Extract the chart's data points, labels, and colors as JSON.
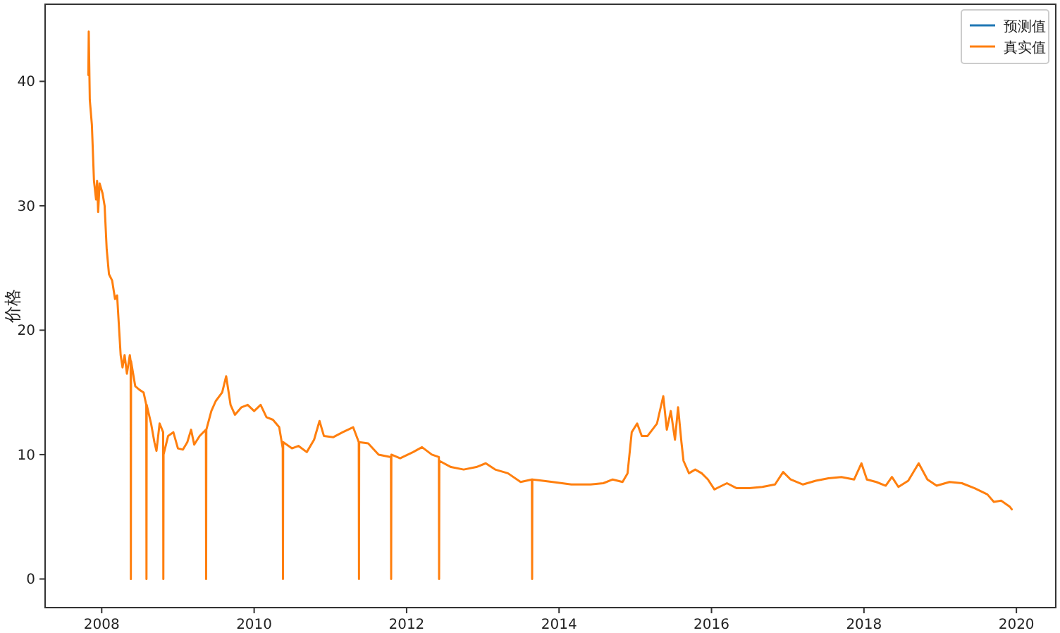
{
  "chart_data": {
    "type": "line",
    "ylabel": "价格",
    "legend": "top right",
    "grid": false,
    "xlim": [
      "2007-04-05",
      "2020-07-08"
    ],
    "xticks": [
      "2008",
      "2010",
      "2012",
      "2014",
      "2016",
      "2018",
      "2020"
    ],
    "ylim": [
      -2.3,
      46.2
    ],
    "yticks": [
      0,
      10,
      20,
      30,
      40
    ],
    "x": [
      "2007-10-29",
      "2007-10-31",
      "2007-11-05",
      "2007-11-15",
      "2007-11-25",
      "2007-12-05",
      "2007-12-10",
      "2007-12-15",
      "2007-12-22",
      "2008-01-05",
      "2008-01-15",
      "2008-01-25",
      "2008-02-05",
      "2008-02-20",
      "2008-03-05",
      "2008-03-15",
      "2008-04-01",
      "2008-04-10",
      "2008-04-20",
      "2008-05-01",
      "2008-05-15",
      "2008-05-19",
      "2008-05-20",
      "2008-05-21",
      "2008-06-10",
      "2008-07-01",
      "2008-07-20",
      "2008-08-02",
      "2008-08-03",
      "2008-08-04",
      "2008-08-25",
      "2008-09-10",
      "2008-09-20",
      "2008-10-05",
      "2008-10-22",
      "2008-10-23",
      "2008-10-24",
      "2008-11-15",
      "2008-12-10",
      "2009-01-01",
      "2009-01-25",
      "2009-02-15",
      "2009-03-05",
      "2009-03-20",
      "2009-04-15",
      "2009-05-15",
      "2009-05-16",
      "2009-05-17",
      "2009-06-10",
      "2009-07-01",
      "2009-08-01",
      "2009-08-20",
      "2009-09-10",
      "2009-10-01",
      "2009-11-01",
      "2009-12-01",
      "2010-01-01",
      "2010-02-01",
      "2010-03-01",
      "2010-04-01",
      "2010-05-01",
      "2010-05-18",
      "2010-05-19",
      "2010-05-20",
      "2010-07-01",
      "2010-08-01",
      "2010-09-10",
      "2010-10-15",
      "2010-11-10",
      "2010-12-01",
      "2011-01-15",
      "2011-03-01",
      "2011-04-20",
      "2011-05-17",
      "2011-05-18",
      "2011-05-19",
      "2011-07-01",
      "2011-08-20",
      "2011-10-18",
      "2011-10-19",
      "2011-10-20",
      "2011-12-01",
      "2012-02-01",
      "2012-03-15",
      "2012-05-01",
      "2012-06-04",
      "2012-06-05",
      "2012-06-06",
      "2012-08-01",
      "2012-10-01",
      "2012-12-01",
      "2013-01-15",
      "2013-03-01",
      "2013-05-01",
      "2013-07-01",
      "2013-08-24",
      "2013-08-25",
      "2013-08-26",
      "2013-10-15",
      "2013-12-01",
      "2014-03-01",
      "2014-06-01",
      "2014-08-01",
      "2014-09-15",
      "2014-11-01",
      "2014-11-25",
      "2014-12-15",
      "2015-01-10",
      "2015-02-01",
      "2015-03-01",
      "2015-04-15",
      "2015-05-15",
      "2015-06-01",
      "2015-06-20",
      "2015-07-10",
      "2015-07-25",
      "2015-08-10",
      "2015-08-20",
      "2015-09-15",
      "2015-10-15",
      "2015-11-15",
      "2015-12-15",
      "2016-01-15",
      "2016-03-15",
      "2016-05-01",
      "2016-07-01",
      "2016-09-01",
      "2016-11-01",
      "2016-12-10",
      "2017-01-15",
      "2017-03-15",
      "2017-05-15",
      "2017-07-15",
      "2017-09-15",
      "2017-11-15",
      "2017-12-20",
      "2018-01-15",
      "2018-03-01",
      "2018-04-15",
      "2018-05-15",
      "2018-06-15",
      "2018-08-01",
      "2018-09-20",
      "2018-11-01",
      "2018-12-15",
      "2019-02-15",
      "2019-04-15",
      "2019-06-15",
      "2019-08-15",
      "2019-09-15",
      "2019-10-20",
      "2019-12-01",
      "2019-12-10"
    ],
    "series": [
      {
        "name": "预测值",
        "color": "#1f77b4",
        "values": [
          null,
          null,
          null,
          null,
          null,
          null,
          null,
          null,
          null,
          null,
          null,
          null,
          null,
          null,
          null,
          null,
          null,
          null,
          null,
          null,
          null,
          null,
          null,
          null,
          null,
          null,
          null,
          null,
          null,
          null,
          null,
          null,
          null,
          null,
          null,
          null,
          null,
          null,
          null,
          null,
          null,
          null,
          null,
          null,
          null,
          null,
          null,
          null,
          null,
          null,
          null,
          null,
          null,
          null,
          null,
          null,
          null,
          null,
          null,
          null,
          null,
          null,
          null,
          null,
          null,
          null,
          null,
          null,
          null,
          null,
          null,
          null,
          null,
          null,
          null,
          null,
          null,
          null,
          null,
          null,
          null,
          null,
          null,
          null,
          null,
          null,
          null,
          null,
          null,
          null,
          null,
          null,
          null,
          null,
          null,
          null,
          null,
          null,
          null,
          null,
          null,
          null,
          null,
          null,
          null,
          null,
          null,
          null,
          null,
          null,
          null,
          null,
          null,
          null,
          null,
          null,
          null,
          null,
          null,
          null,
          null,
          null,
          null,
          null,
          null,
          null,
          null,
          null,
          null,
          null,
          null,
          null,
          null,
          null,
          null,
          null,
          null,
          null,
          null,
          null,
          null,
          null,
          null,
          null,
          null,
          null,
          null,
          null,
          null,
          null,
          null,
          null,
          null
        ]
      },
      {
        "name": "真实值",
        "color": "#ff7f0e",
        "values": [
          40.5,
          44.0,
          38.5,
          36.5,
          32,
          30.5,
          32,
          29.5,
          31.8,
          31,
          30,
          26.5,
          24.5,
          24,
          22.5,
          22.8,
          18,
          17,
          18,
          16.5,
          18,
          17.5,
          0,
          17.5,
          15.5,
          15.2,
          15,
          14,
          0,
          14,
          12.5,
          11,
          10.3,
          12.5,
          11.8,
          0,
          10,
          11.5,
          11.8,
          10.5,
          10.4,
          11,
          12,
          10.8,
          11.5,
          12,
          0,
          12,
          13.5,
          14.3,
          15,
          16.3,
          14,
          13.2,
          13.8,
          14,
          13.5,
          14,
          13,
          12.8,
          12.2,
          10.5,
          0,
          11,
          10.5,
          10.7,
          10.2,
          11.2,
          12.7,
          11.5,
          11.4,
          11.8,
          12.2,
          11,
          0,
          11,
          10.9,
          10,
          9.8,
          0,
          10,
          9.7,
          10.2,
          10.6,
          10,
          9.8,
          0,
          9.5,
          9,
          8.8,
          9,
          9.3,
          8.8,
          8.5,
          7.8,
          8,
          0,
          8,
          7.9,
          7.8,
          7.6,
          7.6,
          7.7,
          8,
          7.8,
          8.5,
          11.8,
          12.5,
          11.5,
          11.5,
          12.5,
          14.7,
          12,
          13.5,
          11.2,
          13.8,
          11,
          9.5,
          8.5,
          8.8,
          8.5,
          8,
          7.2,
          7.7,
          7.3,
          7.3,
          7.4,
          7.6,
          8.6,
          8.0,
          7.6,
          7.9,
          8.1,
          8.2,
          8.0,
          9.3,
          8.0,
          7.8,
          7.5,
          8.2,
          7.4,
          7.9,
          9.3,
          8.0,
          7.5,
          7.8,
          7.7,
          7.3,
          6.8,
          6.2,
          6.3,
          5.8,
          5.6
        ]
      }
    ]
  }
}
